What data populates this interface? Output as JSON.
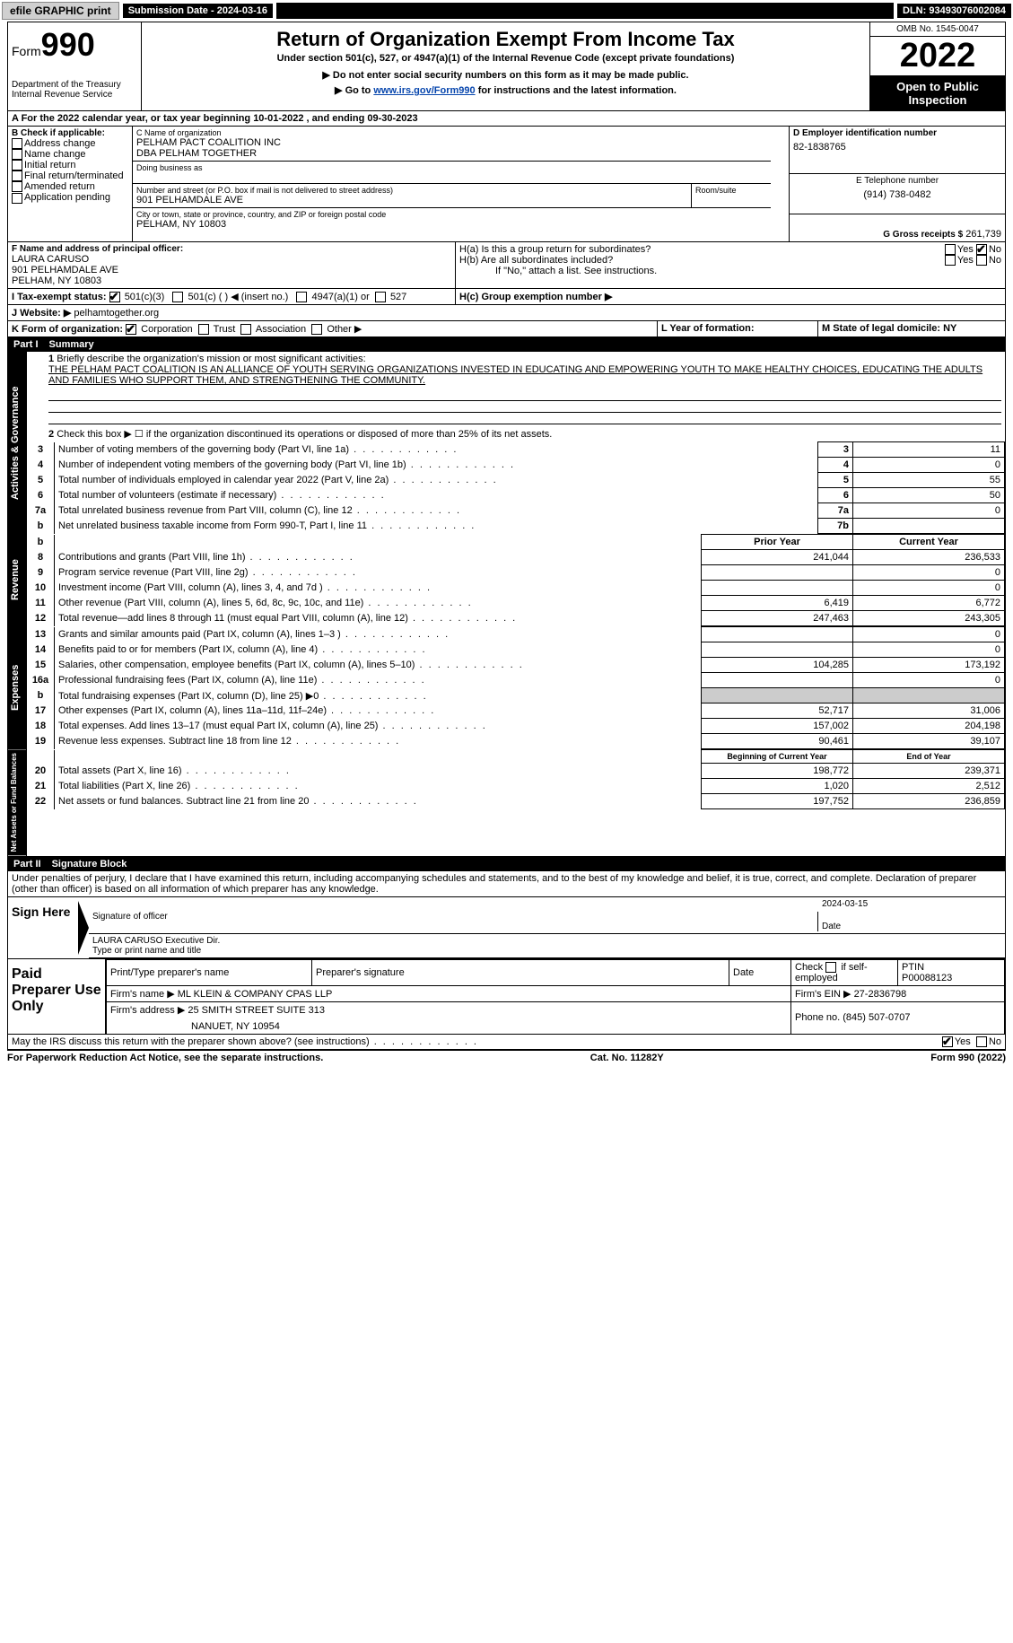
{
  "topbar": {
    "efile": "efile GRAPHIC print",
    "submission": "Submission Date - 2024-03-16",
    "dln": "DLN: 93493076002084"
  },
  "header": {
    "form_word": "Form",
    "form_num": "990",
    "dept": "Department of the Treasury",
    "irs": "Internal Revenue Service",
    "title": "Return of Organization Exempt From Income Tax",
    "sub1": "Under section 501(c), 527, or 4947(a)(1) of the Internal Revenue Code (except private foundations)",
    "sub2": "▶ Do not enter social security numbers on this form as it may be made public.",
    "sub3_pre": "▶ Go to ",
    "sub3_link": "www.irs.gov/Form990",
    "sub3_post": " for instructions and the latest information.",
    "omb": "OMB No. 1545-0047",
    "year": "2022",
    "inspect1": "Open to Public",
    "inspect2": "Inspection"
  },
  "lineA": "A For the 2022 calendar year, or tax year beginning 10-01-2022    , and ending 09-30-2023",
  "boxB": {
    "label": "B Check if applicable:",
    "opts": [
      "Address change",
      "Name change",
      "Initial return",
      "Final return/terminated",
      "Amended return",
      "Application pending"
    ]
  },
  "boxC": {
    "label": "C Name of organization",
    "name1": "PELHAM PACT COALITION INC",
    "name2": "DBA PELHAM TOGETHER",
    "dba": "Doing business as",
    "addr_label": "Number and street (or P.O. box if mail is not delivered to street address)",
    "room": "Room/suite",
    "addr": "901 PELHAMDALE AVE",
    "city_label": "City or town, state or province, country, and ZIP or foreign postal code",
    "city": "PELHAM, NY  10803"
  },
  "boxD": {
    "label": "D Employer identification number",
    "val": "82-1838765"
  },
  "boxE": {
    "label": "E Telephone number",
    "val": "(914) 738-0482"
  },
  "boxG": {
    "label": "G Gross receipts $",
    "val": "261,739"
  },
  "boxF": {
    "label": "F  Name and address of principal officer:",
    "name": "LAURA CARUSO",
    "addr": "901 PELHAMDALE AVE",
    "city": "PELHAM, NY  10803"
  },
  "boxH": {
    "ha": "H(a)  Is this a group return for subordinates?",
    "hb": "H(b)  Are all subordinates included?",
    "hb2": "If \"No,\" attach a list. See instructions.",
    "hc": "H(c)  Group exemption number ▶",
    "yes": "Yes",
    "no": "No"
  },
  "boxI": {
    "label": "I    Tax-exempt status:",
    "o1": "501(c)(3)",
    "o2": "501(c) (  ) ◀ (insert no.)",
    "o3": "4947(a)(1) or",
    "o4": "527"
  },
  "boxJ": {
    "label": "J   Website: ▶",
    "val": "pelhamtogether.org"
  },
  "boxK": {
    "label": "K Form of organization:",
    "o1": "Corporation",
    "o2": "Trust",
    "o3": "Association",
    "o4": "Other ▶"
  },
  "boxL": "L Year of formation:",
  "boxM": "M State of legal domicile: NY",
  "part1": {
    "num": "Part I",
    "title": "Summary"
  },
  "summary": {
    "l1a": "Briefly describe the organization's mission or most significant activities:",
    "l1b": "THE PELHAM PACT COALITION IS AN ALLIANCE OF YOUTH SERVING ORGANIZATIONS INVESTED IN EDUCATING AND EMPOWERING YOUTH TO MAKE HEALTHY CHOICES, EDUCATING THE ADULTS AND FAMILIES WHO SUPPORT THEM, AND STRENGTHENING THE COMMUNITY.",
    "l2": "Check this box ▶ ☐  if the organization discontinued its operations or disposed of more than 25% of its net assets.",
    "rows": [
      {
        "n": "3",
        "t": "Number of voting members of the governing body (Part VI, line 1a)",
        "box": "3",
        "v": "11"
      },
      {
        "n": "4",
        "t": "Number of independent voting members of the governing body (Part VI, line 1b)",
        "box": "4",
        "v": "0"
      },
      {
        "n": "5",
        "t": "Total number of individuals employed in calendar year 2022 (Part V, line 2a)",
        "box": "5",
        "v": "55"
      },
      {
        "n": "6",
        "t": "Total number of volunteers (estimate if necessary)",
        "box": "6",
        "v": "50"
      },
      {
        "n": "7a",
        "t": "Total unrelated business revenue from Part VIII, column (C), line 12",
        "box": "7a",
        "v": "0"
      },
      {
        "n": "b",
        "t": "Net unrelated business taxable income from Form 990-T, Part I, line 11",
        "box": "7b",
        "v": ""
      }
    ],
    "prior": "Prior Year",
    "current": "Current Year",
    "rev": [
      {
        "n": "8",
        "t": "Contributions and grants (Part VIII, line 1h)",
        "p": "241,044",
        "c": "236,533"
      },
      {
        "n": "9",
        "t": "Program service revenue (Part VIII, line 2g)",
        "p": "",
        "c": "0"
      },
      {
        "n": "10",
        "t": "Investment income (Part VIII, column (A), lines 3, 4, and 7d )",
        "p": "",
        "c": "0"
      },
      {
        "n": "11",
        "t": "Other revenue (Part VIII, column (A), lines 5, 6d, 8c, 9c, 10c, and 11e)",
        "p": "6,419",
        "c": "6,772"
      },
      {
        "n": "12",
        "t": "Total revenue—add lines 8 through 11 (must equal Part VIII, column (A), line 12)",
        "p": "247,463",
        "c": "243,305"
      }
    ],
    "exp": [
      {
        "n": "13",
        "t": "Grants and similar amounts paid (Part IX, column (A), lines 1–3 )",
        "p": "",
        "c": "0"
      },
      {
        "n": "14",
        "t": "Benefits paid to or for members (Part IX, column (A), line 4)",
        "p": "",
        "c": "0"
      },
      {
        "n": "15",
        "t": "Salaries, other compensation, employee benefits (Part IX, column (A), lines 5–10)",
        "p": "104,285",
        "c": "173,192"
      },
      {
        "n": "16a",
        "t": "Professional fundraising fees (Part IX, column (A), line 11e)",
        "p": "",
        "c": "0"
      },
      {
        "n": "b",
        "t": "Total fundraising expenses (Part IX, column (D), line 25) ▶0",
        "p": "shade",
        "c": "shade"
      },
      {
        "n": "17",
        "t": "Other expenses (Part IX, column (A), lines 11a–11d, 11f–24e)",
        "p": "52,717",
        "c": "31,006"
      },
      {
        "n": "18",
        "t": "Total expenses. Add lines 13–17 (must equal Part IX, column (A), line 25)",
        "p": "157,002",
        "c": "204,198"
      },
      {
        "n": "19",
        "t": "Revenue less expenses. Subtract line 18 from line 12",
        "p": "90,461",
        "c": "39,107"
      }
    ],
    "begin": "Beginning of Current Year",
    "end": "End of Year",
    "net": [
      {
        "n": "20",
        "t": "Total assets (Part X, line 16)",
        "p": "198,772",
        "c": "239,371"
      },
      {
        "n": "21",
        "t": "Total liabilities (Part X, line 26)",
        "p": "1,020",
        "c": "2,512"
      },
      {
        "n": "22",
        "t": "Net assets or fund balances. Subtract line 21 from line 20",
        "p": "197,752",
        "c": "236,859"
      }
    ],
    "tab_gov": "Activities & Governance",
    "tab_rev": "Revenue",
    "tab_exp": "Expenses",
    "tab_net": "Net Assets or Fund Balances"
  },
  "part2": {
    "num": "Part II",
    "title": "Signature Block",
    "perjury": "Under penalties of perjury, I declare that I have examined this return, including accompanying schedules and statements, and to the best of my knowledge and belief, it is true, correct, and complete. Declaration of preparer (other than officer) is based on all information of which preparer has any knowledge."
  },
  "sign": {
    "here": "Sign Here",
    "sig_officer": "Signature of officer",
    "date": "Date",
    "date_val": "2024-03-15",
    "name": "LAURA CARUSO  Executive Dir.",
    "type": "Type or print name and title"
  },
  "paid": {
    "label": "Paid Preparer Use Only",
    "h1": "Print/Type preparer's name",
    "h2": "Preparer's signature",
    "h3": "Date",
    "h4_a": "Check",
    "h4_b": "if self-employed",
    "h5": "PTIN",
    "ptin": "P00088123",
    "firm_label": "Firm's name    ▶",
    "firm": "ML KLEIN & COMPANY CPAS LLP",
    "ein_label": "Firm's EIN ▶",
    "ein": "27-2836798",
    "addr_label": "Firm's address ▶",
    "addr1": "25 SMITH STREET SUITE 313",
    "addr2": "NANUET, NY  10954",
    "phone_label": "Phone no.",
    "phone": "(845) 507-0707"
  },
  "discuss": "May the IRS discuss this return with the preparer shown above? (see instructions)",
  "footer": {
    "l": "For Paperwork Reduction Act Notice, see the separate instructions.",
    "m": "Cat. No. 11282Y",
    "r": "Form 990 (2022)"
  }
}
